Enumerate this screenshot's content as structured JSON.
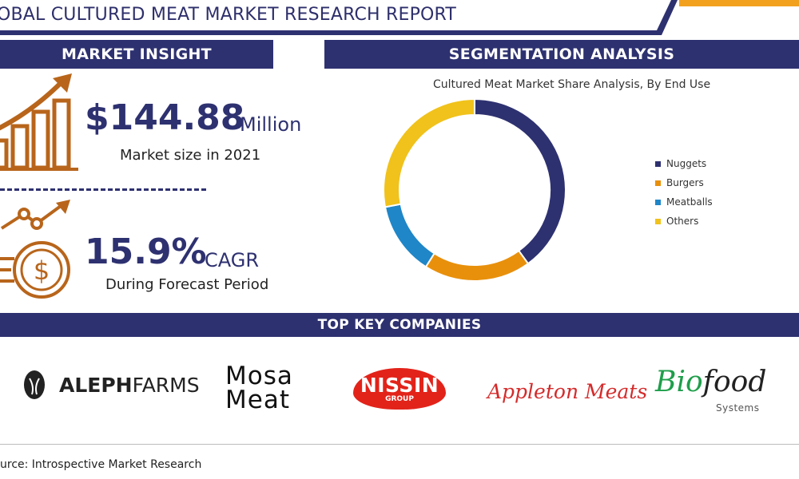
{
  "header": {
    "title": "OBAL CULTURED MEAT MARKET RESEARCH REPORT"
  },
  "insight": {
    "header": "MARKET INSIGHT",
    "market_value": "$144.88",
    "market_unit": "Million",
    "market_caption": "Market size in 2021",
    "cagr_value": "15.9%",
    "cagr_unit": "CAGR",
    "cagr_caption": "During Forecast Period"
  },
  "segmentation": {
    "header": "SEGMENTATION ANALYSIS"
  },
  "chart_data": {
    "type": "pie",
    "subtype": "donut",
    "title": "Cultured Meat Market Share Analysis, By End Use",
    "categories": [
      "Nuggets",
      "Burgers",
      "Meatballs",
      "Others"
    ],
    "values": [
      40,
      19,
      13,
      28
    ],
    "colors": [
      "#2e3170",
      "#e8900c",
      "#1f86c8",
      "#f0c21b"
    ],
    "legend_position": "right"
  },
  "companies": {
    "header": "TOP KEY COMPANIES",
    "aleph_bold": "ALEPH",
    "aleph_light": "FARMS",
    "mosa_line1": "Mosa",
    "mosa_line2": "Meat",
    "nissin_name": "NISSIN",
    "nissin_sub": "GROUP",
    "appleton": "Appleton Meats",
    "bio_green": "Bio",
    "bio_black": "food",
    "bio_sub": "Systems"
  },
  "footer": {
    "source": "urce: Introspective Market Research"
  },
  "colors": {
    "navy": "#2e3170",
    "orange": "#e8900c",
    "blue": "#1f86c8",
    "yellow": "#f0c21b",
    "icon_brown": "#b8651b"
  }
}
